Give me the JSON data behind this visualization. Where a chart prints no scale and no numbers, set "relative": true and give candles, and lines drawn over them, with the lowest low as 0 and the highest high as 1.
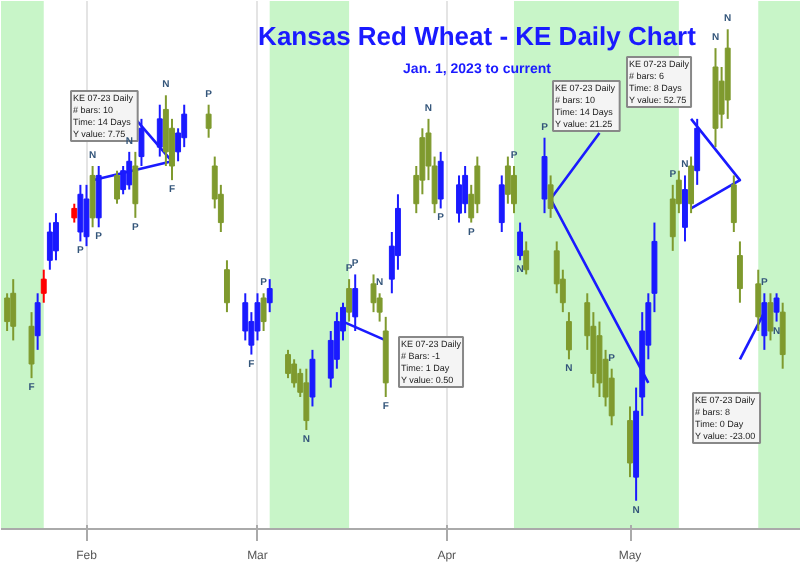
{
  "chart_data": {
    "type": "candlestick",
    "title": "Kansas Red Wheat - KE Daily Chart",
    "subtitle": "Jan. 1, 2023 to current",
    "relative": true,
    "grid": "x",
    "x": [
      "2023-01-19",
      "2023-01-20",
      "2023-01-23",
      "2023-01-24",
      "2023-01-25",
      "2023-01-26",
      "2023-01-27",
      "2023-01-30",
      "2023-01-31",
      "2023-02-01",
      "2023-02-02",
      "2023-02-03",
      "2023-02-06",
      "2023-02-07",
      "2023-02-08",
      "2023-02-09",
      "2023-02-10",
      "2023-02-13",
      "2023-02-14",
      "2023-02-15",
      "2023-02-16",
      "2023-02-17",
      "2023-02-21",
      "2023-02-22",
      "2023-02-23",
      "2023-02-24",
      "2023-02-27",
      "2023-02-28",
      "2023-03-01",
      "2023-03-02",
      "2023-03-03",
      "2023-03-06",
      "2023-03-07",
      "2023-03-08",
      "2023-03-09",
      "2023-03-10",
      "2023-03-13",
      "2023-03-14",
      "2023-03-15",
      "2023-03-16",
      "2023-03-17",
      "2023-03-20",
      "2023-03-21",
      "2023-03-22",
      "2023-03-23",
      "2023-03-24",
      "2023-03-27",
      "2023-03-28",
      "2023-03-29",
      "2023-03-30",
      "2023-03-31",
      "2023-04-03",
      "2023-04-04",
      "2023-04-05",
      "2023-04-06",
      "2023-04-10",
      "2023-04-11",
      "2023-04-12",
      "2023-04-13",
      "2023-04-14",
      "2023-04-17",
      "2023-04-18",
      "2023-04-19",
      "2023-04-20",
      "2023-04-21",
      "2023-04-24",
      "2023-04-25",
      "2023-04-26",
      "2023-04-27",
      "2023-04-28",
      "2023-05-01",
      "2023-05-02",
      "2023-05-03",
      "2023-05-04",
      "2023-05-05",
      "2023-05-08",
      "2023-05-09",
      "2023-05-10",
      "2023-05-11",
      "2023-05-12",
      "2023-05-15",
      "2023-05-16",
      "2023-05-17",
      "2023-05-18",
      "2023-05-19",
      "2023-05-22",
      "2023-05-23",
      "2023-05-24",
      "2023-05-25",
      "2023-05-26"
    ],
    "ohlc": [
      [
        0.43,
        0.44,
        0.36,
        0.38
      ],
      [
        0.44,
        0.47,
        0.34,
        0.37
      ],
      [
        0.37,
        0.4,
        0.26,
        0.29
      ],
      [
        0.35,
        0.44,
        0.32,
        0.42
      ],
      [
        0.44,
        0.49,
        0.42,
        0.47
      ],
      [
        0.51,
        0.59,
        0.49,
        0.57
      ],
      [
        0.53,
        0.61,
        0.51,
        0.59
      ],
      [
        0.6,
        0.63,
        0.59,
        0.62
      ],
      [
        0.57,
        0.67,
        0.55,
        0.65
      ],
      [
        0.56,
        0.67,
        0.54,
        0.64
      ],
      [
        0.69,
        0.71,
        0.58,
        0.6
      ],
      [
        0.6,
        0.71,
        0.58,
        0.69
      ],
      [
        0.69,
        0.7,
        0.63,
        0.64
      ],
      [
        0.66,
        0.71,
        0.65,
        0.7
      ],
      [
        0.67,
        0.74,
        0.66,
        0.72
      ],
      [
        0.71,
        0.74,
        0.6,
        0.63
      ],
      [
        0.73,
        0.81,
        0.71,
        0.79
      ],
      [
        0.75,
        0.84,
        0.73,
        0.81
      ],
      [
        0.83,
        0.86,
        0.71,
        0.74
      ],
      [
        0.79,
        0.81,
        0.68,
        0.71
      ],
      [
        0.74,
        0.79,
        0.72,
        0.78
      ],
      [
        0.77,
        0.84,
        0.75,
        0.82
      ],
      [
        0.82,
        0.84,
        0.77,
        0.79
      ],
      [
        0.71,
        0.73,
        0.62,
        0.64
      ],
      [
        0.65,
        0.67,
        0.57,
        0.59
      ],
      [
        0.49,
        0.51,
        0.4,
        0.42
      ],
      [
        0.36,
        0.44,
        0.34,
        0.42
      ],
      [
        0.33,
        0.4,
        0.31,
        0.38
      ],
      [
        0.36,
        0.44,
        0.34,
        0.42
      ],
      [
        0.43,
        0.44,
        0.36,
        0.38
      ],
      [
        0.42,
        0.47,
        0.4,
        0.45
      ],
      [
        0.31,
        0.32,
        0.26,
        0.27
      ],
      [
        0.29,
        0.3,
        0.24,
        0.25
      ],
      [
        0.27,
        0.28,
        0.22,
        0.23
      ],
      [
        0.25,
        0.28,
        0.15,
        0.17
      ],
      [
        0.22,
        0.32,
        0.2,
        0.3
      ],
      [
        0.26,
        0.36,
        0.24,
        0.34
      ],
      [
        0.3,
        0.4,
        0.28,
        0.38
      ],
      [
        0.36,
        0.42,
        0.34,
        0.41
      ],
      [
        0.45,
        0.47,
        0.38,
        0.4
      ],
      [
        0.39,
        0.48,
        0.36,
        0.45
      ],
      [
        0.46,
        0.48,
        0.4,
        0.42
      ],
      [
        0.43,
        0.44,
        0.38,
        0.4
      ],
      [
        0.36,
        0.39,
        0.22,
        0.25
      ],
      [
        0.47,
        0.57,
        0.44,
        0.54
      ],
      [
        0.52,
        0.65,
        0.49,
        0.62
      ],
      [
        0.69,
        0.71,
        0.61,
        0.63
      ],
      [
        0.77,
        0.79,
        0.65,
        0.68
      ],
      [
        0.78,
        0.81,
        0.68,
        0.71
      ],
      [
        0.71,
        0.73,
        0.61,
        0.63
      ],
      [
        0.64,
        0.74,
        0.62,
        0.72
      ],
      [
        0.61,
        0.69,
        0.59,
        0.67
      ],
      [
        0.63,
        0.71,
        0.61,
        0.69
      ],
      [
        0.65,
        0.67,
        0.59,
        0.6
      ],
      [
        0.71,
        0.73,
        0.61,
        0.63
      ],
      [
        0.59,
        0.69,
        0.57,
        0.67
      ],
      [
        0.71,
        0.73,
        0.63,
        0.65
      ],
      [
        0.69,
        0.71,
        0.61,
        0.63
      ],
      [
        0.52,
        0.59,
        0.51,
        0.57
      ],
      [
        0.53,
        0.55,
        0.48,
        0.49
      ],
      [
        0.64,
        0.77,
        0.61,
        0.73
      ],
      [
        0.67,
        0.69,
        0.6,
        0.62
      ],
      [
        0.53,
        0.55,
        0.44,
        0.46
      ],
      [
        0.47,
        0.49,
        0.4,
        0.42
      ],
      [
        0.38,
        0.4,
        0.3,
        0.32
      ],
      [
        0.42,
        0.44,
        0.32,
        0.35
      ],
      [
        0.37,
        0.4,
        0.24,
        0.27
      ],
      [
        0.35,
        0.38,
        0.22,
        0.25
      ],
      [
        0.3,
        0.32,
        0.2,
        0.22
      ],
      [
        0.26,
        0.28,
        0.16,
        0.18
      ],
      [
        0.17,
        0.2,
        0.05,
        0.08
      ],
      [
        0.05,
        0.24,
        0.0,
        0.19
      ],
      [
        0.22,
        0.4,
        0.18,
        0.36
      ],
      [
        0.33,
        0.44,
        0.3,
        0.42
      ],
      [
        0.44,
        0.59,
        0.4,
        0.55
      ],
      [
        0.64,
        0.67,
        0.53,
        0.56
      ],
      [
        0.68,
        0.7,
        0.61,
        0.63
      ],
      [
        0.58,
        0.69,
        0.55,
        0.66
      ],
      [
        0.71,
        0.73,
        0.61,
        0.63
      ],
      [
        0.7,
        0.81,
        0.67,
        0.79
      ],
      [
        0.92,
        0.96,
        0.75,
        0.79
      ],
      [
        0.89,
        0.92,
        0.79,
        0.82
      ],
      [
        0.96,
        1.0,
        0.81,
        0.85
      ],
      [
        0.67,
        0.69,
        0.57,
        0.59
      ],
      [
        0.52,
        0.55,
        0.42,
        0.45
      ],
      [
        0.46,
        0.49,
        0.36,
        0.39
      ],
      [
        0.35,
        0.44,
        0.32,
        0.42
      ],
      [
        0.42,
        0.44,
        0.34,
        0.36
      ],
      [
        0.4,
        0.44,
        0.38,
        0.43
      ],
      [
        0.4,
        0.42,
        0.28,
        0.31
      ]
    ],
    "colors": [
      "#7f9a2e",
      "#7f9a2e",
      "#7f9a2e",
      "#1a1aff",
      "#ff0000",
      "#1a1aff",
      "#1a1aff",
      "#ff0000",
      "#1a1aff",
      "#1a1aff",
      "#7f9a2e",
      "#1a1aff",
      "#7f9a2e",
      "#1a1aff",
      "#1a1aff",
      "#7f9a2e",
      "#1a1aff",
      "#1a1aff",
      "#7f9a2e",
      "#7f9a2e",
      "#1a1aff",
      "#1a1aff",
      "#7f9a2e",
      "#7f9a2e",
      "#7f9a2e",
      "#7f9a2e",
      "#1a1aff",
      "#1a1aff",
      "#1a1aff",
      "#7f9a2e",
      "#1a1aff",
      "#7f9a2e",
      "#7f9a2e",
      "#7f9a2e",
      "#7f9a2e",
      "#1a1aff",
      "#1a1aff",
      "#1a1aff",
      "#1a1aff",
      "#7f9a2e",
      "#1a1aff",
      "#7f9a2e",
      "#7f9a2e",
      "#7f9a2e",
      "#1a1aff",
      "#1a1aff",
      "#7f9a2e",
      "#7f9a2e",
      "#7f9a2e",
      "#7f9a2e",
      "#1a1aff",
      "#1a1aff",
      "#1a1aff",
      "#7f9a2e",
      "#7f9a2e",
      "#1a1aff",
      "#7f9a2e",
      "#7f9a2e",
      "#1a1aff",
      "#7f9a2e",
      "#1a1aff",
      "#7f9a2e",
      "#7f9a2e",
      "#7f9a2e",
      "#7f9a2e",
      "#7f9a2e",
      "#7f9a2e",
      "#7f9a2e",
      "#7f9a2e",
      "#7f9a2e",
      "#7f9a2e",
      "#1a1aff",
      "#1a1aff",
      "#1a1aff",
      "#1a1aff",
      "#7f9a2e",
      "#7f9a2e",
      "#1a1aff",
      "#7f9a2e",
      "#1a1aff",
      "#7f9a2e",
      "#7f9a2e",
      "#7f9a2e",
      "#7f9a2e",
      "#7f9a2e",
      "#7f9a2e",
      "#1a1aff",
      "#7f9a2e",
      "#1a1aff",
      "#7f9a2e"
    ],
    "xlim": [
      "2023-01-18",
      "2023-05-29"
    ],
    "xticks": [
      {
        "value": "2023-02-01",
        "label": "Feb"
      },
      {
        "value": "2023-03-01",
        "label": "Mar"
      },
      {
        "value": "2023-04-01",
        "label": "Apr"
      },
      {
        "value": "2023-05-01",
        "label": "May"
      }
    ],
    "bands": [
      {
        "axis": "x",
        "from": "2023-01-18",
        "to": "2023-01-25",
        "color": "#c8f5c8"
      },
      {
        "axis": "x",
        "from": "2023-03-03",
        "to": "2023-03-16",
        "color": "#c8f5c8"
      },
      {
        "axis": "x",
        "from": "2023-04-12",
        "to": "2023-05-09",
        "color": "#c8f5c8"
      },
      {
        "axis": "x",
        "from": "2023-05-22",
        "to": "2023-05-29",
        "color": "#c8f5c8"
      }
    ],
    "series": [
      {
        "type": "line",
        "color": "#1a1aff",
        "x": [
          "2023-02-09",
          "2023-02-15",
          "2023-02-02"
        ],
        "values": [
          0.81,
          0.72,
          0.68
        ]
      },
      {
        "type": "line",
        "color": "#1a1aff",
        "x": [
          "2023-03-15",
          "2023-03-22"
        ],
        "values": [
          0.38,
          0.34
        ]
      },
      {
        "type": "line",
        "color": "#1a1aff",
        "x": [
          "2023-04-26",
          "2023-04-18",
          "2023-05-04"
        ],
        "values": [
          0.78,
          0.64,
          0.25
        ]
      },
      {
        "type": "line",
        "color": "#1a1aff",
        "x": [
          "2023-05-11",
          "2023-05-19",
          "2023-05-11"
        ],
        "values": [
          0.81,
          0.68,
          0.62
        ]
      },
      {
        "type": "line",
        "color": "#1a1aff",
        "x": [
          "2023-05-23",
          "2023-05-19"
        ],
        "values": [
          0.4,
          0.3
        ]
      }
    ],
    "annotations": [
      "KE 07-23 Daily\n# bars:   10\nTime:   14 Days\nY value:  7.75",
      "KE 07-23 Daily\n# bars:   10\nTime:   14 Days\nY value:  21.25",
      "KE 07-23 Daily\n# bars:   6\nTime:   8 Days\nY value:  52.75",
      "KE 07-23 Daily\n# Bars:   -1\nTime:   1 Day\nY value:  0.50",
      "KE 07-23 Daily\n# bars:   8\nTime:   0 Day\nY value:  -23.00",
      {
        "text": "N",
        "x": "2023-02-14",
        "y": 0.86
      },
      {
        "text": "N",
        "x": "2023-02-08",
        "y": 0.74
      },
      {
        "text": "N",
        "x": "2023-02-02",
        "y": 0.71
      },
      {
        "text": "P",
        "x": "2023-02-21",
        "y": 0.84
      },
      {
        "text": "P",
        "x": "2023-01-31",
        "y": 0.55
      },
      {
        "text": "P",
        "x": "2023-02-03",
        "y": 0.58
      },
      {
        "text": "P",
        "x": "2023-02-09",
        "y": 0.6
      },
      {
        "text": "F",
        "x": "2023-02-15",
        "y": 0.68
      },
      {
        "text": "F",
        "x": "2023-01-23",
        "y": 0.26
      },
      {
        "text": "F",
        "x": "2023-02-28",
        "y": 0.31
      },
      {
        "text": "N",
        "x": "2023-03-09",
        "y": 0.15
      },
      {
        "text": "P",
        "x": "2023-03-02",
        "y": 0.44
      },
      {
        "text": "P",
        "x": "2023-03-16",
        "y": 0.47
      },
      {
        "text": "F",
        "x": "2023-03-22",
        "y": 0.22
      },
      {
        "text": "P",
        "x": "2023-03-17",
        "y": 0.48
      },
      {
        "text": "N",
        "x": "2023-03-21",
        "y": 0.44
      },
      {
        "text": "N",
        "x": "2023-03-29",
        "y": 0.81
      },
      {
        "text": "P",
        "x": "2023-03-31",
        "y": 0.62
      },
      {
        "text": "P",
        "x": "2023-04-05",
        "y": 0.59
      },
      {
        "text": "P",
        "x": "2023-04-12",
        "y": 0.71
      },
      {
        "text": "P",
        "x": "2023-04-17",
        "y": 0.77
      },
      {
        "text": "N",
        "x": "2023-04-13",
        "y": 0.51
      },
      {
        "text": "N",
        "x": "2023-04-21",
        "y": 0.3
      },
      {
        "text": "P",
        "x": "2023-04-28",
        "y": 0.28
      },
      {
        "text": "N",
        "x": "2023-05-02",
        "y": 0.0
      },
      {
        "text": "P",
        "x": "2023-05-08",
        "y": 0.67
      },
      {
        "text": "N",
        "x": "2023-05-10",
        "y": 0.69
      },
      {
        "text": "N",
        "x": "2023-05-15",
        "y": 0.96
      },
      {
        "text": "N",
        "x": "2023-05-17",
        "y": 1.0
      },
      {
        "text": "P",
        "x": "2023-05-23",
        "y": 0.44
      },
      {
        "text": "N",
        "x": "2023-05-25",
        "y": 0.38
      }
    ]
  }
}
